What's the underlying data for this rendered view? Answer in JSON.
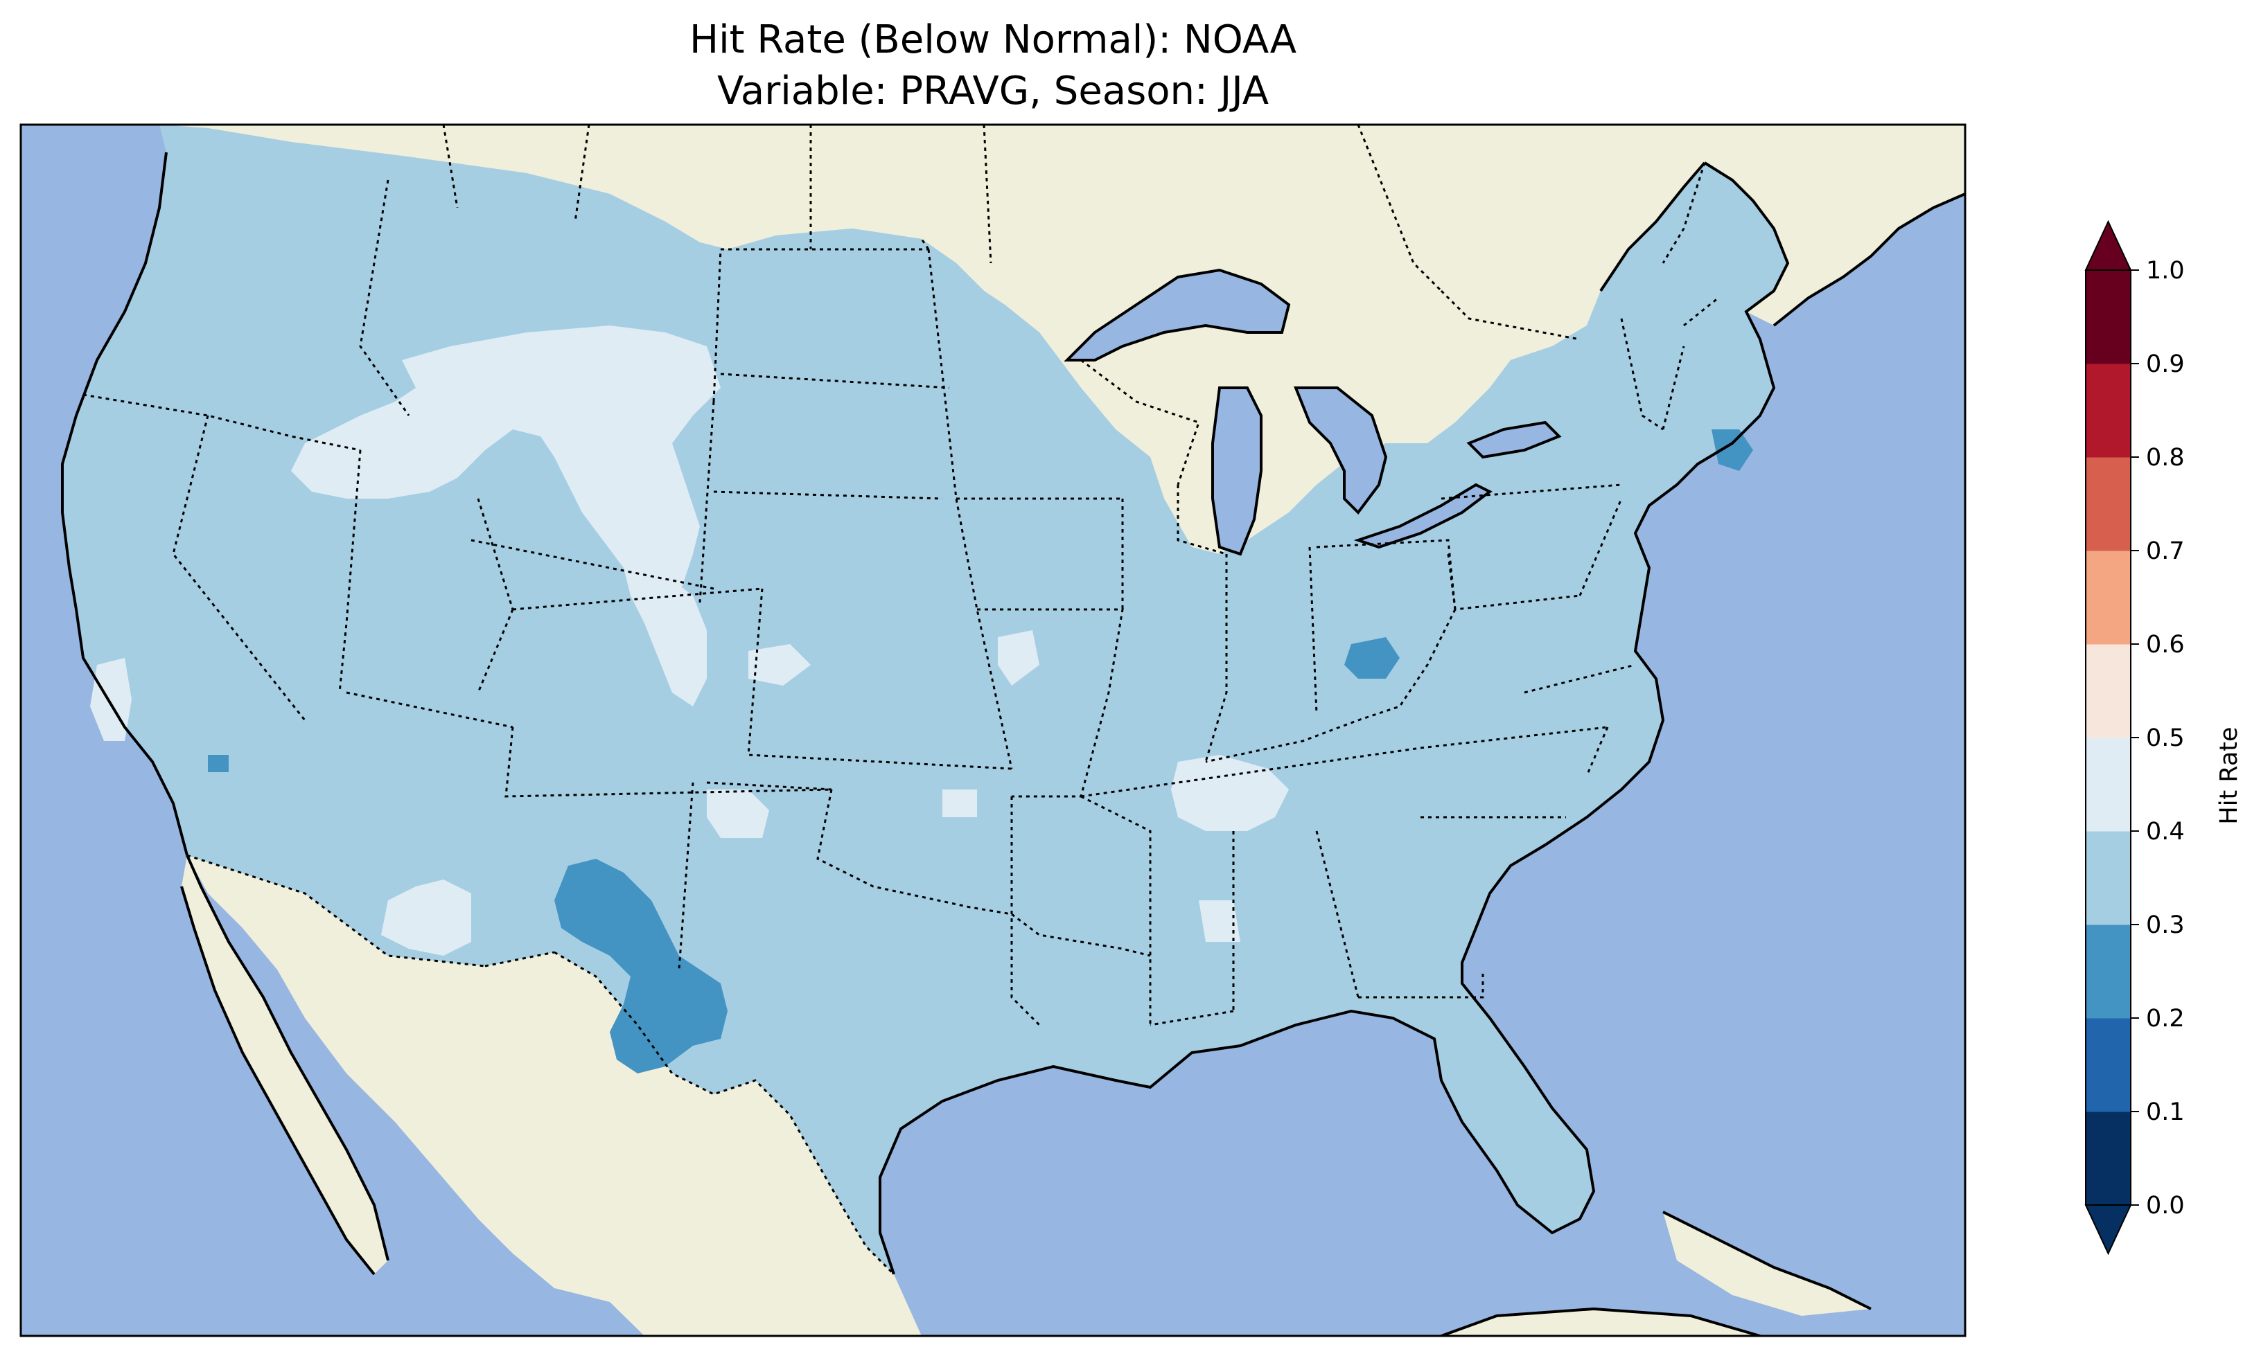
{
  "title": {
    "line1": "Hit Rate (Below Normal): NOAA",
    "line2": "Variable: PRAVG, Season: JJA"
  },
  "colors": {
    "ocean": "#97b6e1",
    "land": "#efefdc",
    "lake": "#97b6e1",
    "domain_dominant": "#a6cee3"
  },
  "colorbar": {
    "label": "Hit Rate",
    "ticks": [
      "0.0",
      "0.1",
      "0.2",
      "0.3",
      "0.4",
      "0.5",
      "0.6",
      "0.7",
      "0.8",
      "0.9",
      "1.0"
    ],
    "bins": [
      {
        "range": [
          0.0,
          0.1
        ],
        "color": "#053061"
      },
      {
        "range": [
          0.1,
          0.2
        ],
        "color": "#2166ac"
      },
      {
        "range": [
          0.2,
          0.3
        ],
        "color": "#4393c3"
      },
      {
        "range": [
          0.3,
          0.4
        ],
        "color": "#a6cee3"
      },
      {
        "range": [
          0.4,
          0.5
        ],
        "color": "#e0ecf4"
      },
      {
        "range": [
          0.5,
          0.6
        ],
        "color": "#f7e6dc"
      },
      {
        "range": [
          0.6,
          0.7
        ],
        "color": "#f4a582"
      },
      {
        "range": [
          0.7,
          0.8
        ],
        "color": "#d6604d"
      },
      {
        "range": [
          0.8,
          0.9
        ],
        "color": "#b2182b"
      },
      {
        "range": [
          0.9,
          1.0
        ],
        "color": "#67001f"
      }
    ],
    "under_color": "#053061",
    "over_color": "#67001f"
  },
  "chart_data": {
    "type": "heatmap",
    "title": "Hit Rate (Below Normal): NOAA\nVariable: PRAVG, Season: JJA",
    "colorbar_label": "Hit Rate",
    "vmin": 0.0,
    "vmax": 1.0,
    "levels": [
      0.0,
      0.1,
      0.2,
      0.3,
      0.4,
      0.5,
      0.6,
      0.7,
      0.8,
      0.9,
      1.0
    ],
    "dominant_value_range": [
      0.3,
      0.4
    ],
    "regions": [
      {
        "area": "Idaho / Montana / Wyoming",
        "value_range": [
          0.4,
          0.5
        ]
      },
      {
        "area": "Wyoming / Colorado front range",
        "value_range": [
          0.4,
          0.5
        ]
      },
      {
        "area": "Southern Arizona",
        "value_range": [
          0.4,
          0.5
        ]
      },
      {
        "area": "Central California coast",
        "value_range": [
          0.4,
          0.5
        ]
      },
      {
        "area": "Tennessee / Kentucky",
        "value_range": [
          0.4,
          0.5
        ]
      },
      {
        "area": "New Mexico / West Texas",
        "value_range": [
          0.2,
          0.3
        ]
      },
      {
        "area": "Southern Ohio",
        "value_range": [
          0.2,
          0.3
        ]
      },
      {
        "area": "Massachusetts",
        "value_range": [
          0.2,
          0.3
        ]
      }
    ]
  }
}
